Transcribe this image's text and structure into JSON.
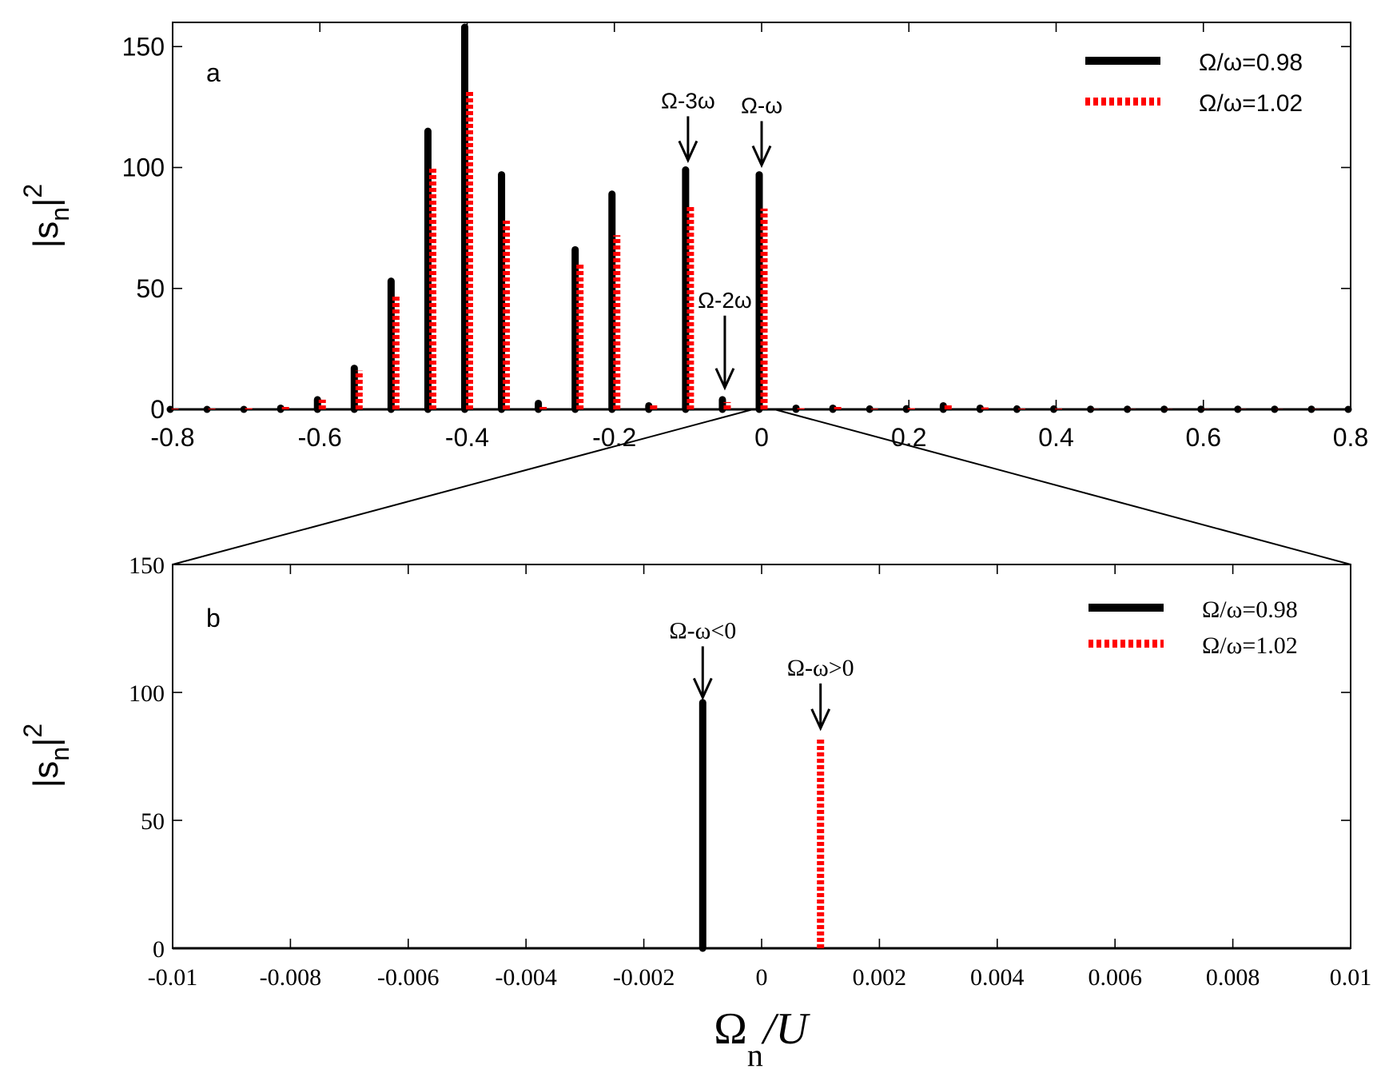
{
  "chart_data": [
    {
      "type": "bar",
      "panel_label": "a",
      "xlim": [
        -0.8,
        0.8
      ],
      "ylim": [
        0,
        160
      ],
      "xticks": [
        "-0.8",
        "-0.6",
        "-0.4",
        "-0.2",
        "0",
        "0.2",
        "0.4",
        "0.6",
        "0.8"
      ],
      "xtick_values": [
        -0.8,
        -0.6,
        -0.4,
        -0.2,
        0,
        0.2,
        0.4,
        0.6,
        0.8
      ],
      "yticks": [
        "0",
        "50",
        "100",
        "150"
      ],
      "ytick_values": [
        0,
        50,
        100,
        150
      ],
      "ylabel_main": "|s",
      "ylabel_sub": "n",
      "ylabel_sup": "2",
      "legend_position": "top-right",
      "series": [
        {
          "name": "Ω/ω=0.98",
          "color": "#000000",
          "style": "solid",
          "x": [
            -0.8,
            -0.75,
            -0.7,
            -0.65,
            -0.6,
            -0.55,
            -0.5,
            -0.45,
            -0.4,
            -0.35,
            -0.3,
            -0.25,
            -0.2,
            -0.15,
            -0.1,
            -0.05,
            0,
            0.05,
            0.1,
            0.15,
            0.2,
            0.25,
            0.3,
            0.35,
            0.4,
            0.45,
            0.5,
            0.55,
            0.6,
            0.65,
            0.7,
            0.75,
            0.8
          ],
          "values": [
            0,
            0,
            0,
            0.5,
            4,
            17,
            53,
            115,
            158,
            97,
            2.5,
            66,
            89,
            1.5,
            99,
            4,
            97,
            0.5,
            0.5,
            0.2,
            0.3,
            1.5,
            0.5,
            0.2,
            0.2,
            0.1,
            0.1,
            0.1,
            0.1,
            0.1,
            0.1,
            0.1,
            0
          ]
        },
        {
          "name": "Ω/ω=1.02",
          "color": "#ff0000",
          "style": "dotted",
          "x": [
            -0.8,
            -0.75,
            -0.7,
            -0.65,
            -0.6,
            -0.55,
            -0.5,
            -0.45,
            -0.4,
            -0.35,
            -0.3,
            -0.25,
            -0.2,
            -0.15,
            -0.1,
            -0.05,
            0,
            0.05,
            0.1,
            0.15,
            0.2,
            0.25,
            0.3,
            0.35,
            0.4,
            0.45,
            0.5,
            0.55,
            0.6,
            0.65,
            0.7,
            0.75
          ],
          "values": [
            0.3,
            0.3,
            0.5,
            1,
            4,
            16,
            47,
            100,
            132,
            78,
            1,
            60,
            72,
            2,
            84,
            3,
            83,
            0.5,
            1,
            0.3,
            0.5,
            2,
            0.8,
            0.3,
            0.3,
            0.1,
            0.1,
            0.1,
            0.1,
            0.1,
            0.1,
            0.1
          ]
        }
      ],
      "annotations": [
        {
          "text": "Ω-3ω",
          "x": -0.1,
          "y_tip": 103
        },
        {
          "text": "Ω-ω",
          "x": 0,
          "y_tip": 101
        },
        {
          "text": "Ω-2ω",
          "x": -0.05,
          "y_tip": 9
        }
      ]
    },
    {
      "type": "bar",
      "panel_label": "b",
      "xlim": [
        -0.01,
        0.01
      ],
      "ylim": [
        0,
        150
      ],
      "xticks": [
        "-0.01",
        "-0.008",
        "-0.006",
        "-0.004",
        "-0.002",
        "0",
        "0.002",
        "0.004",
        "0.006",
        "0.008",
        "0.01"
      ],
      "xtick_values": [
        -0.01,
        -0.008,
        -0.006,
        -0.004,
        -0.002,
        0,
        0.002,
        0.004,
        0.006,
        0.008,
        0.01
      ],
      "yticks": [
        "0",
        "50",
        "100",
        "150"
      ],
      "ytick_values": [
        0,
        50,
        100,
        150
      ],
      "ylabel_main": "|s",
      "ylabel_sub": "n",
      "ylabel_sup": "2",
      "xlabel_main": "Ω",
      "xlabel_sub": "n",
      "xlabel_tail": "/U",
      "legend_position": "top-right",
      "series": [
        {
          "name": "Ω/ω=0.98",
          "color": "#000000",
          "style": "solid",
          "x": [
            -0.001
          ],
          "values": [
            96
          ]
        },
        {
          "name": "Ω/ω=1.02",
          "color": "#ff0000",
          "style": "dotted",
          "x": [
            0.001
          ],
          "values": [
            82
          ]
        }
      ],
      "annotations": [
        {
          "text": "Ω-ω<0",
          "x": -0.001,
          "y_tip": 98
        },
        {
          "text": "Ω-ω>0",
          "x": 0.001,
          "y_tip": 86
        }
      ]
    }
  ]
}
